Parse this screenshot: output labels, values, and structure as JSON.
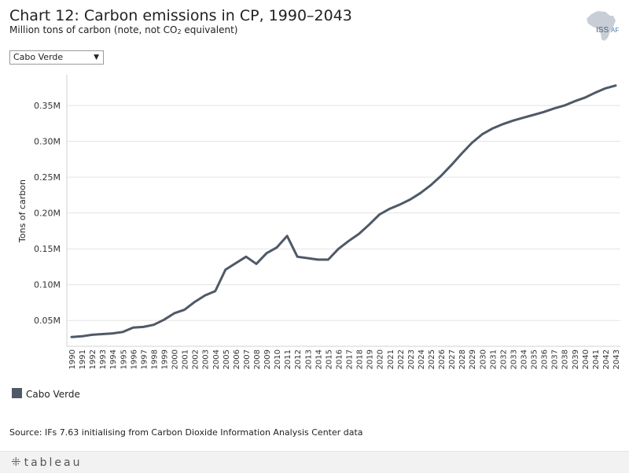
{
  "header": {
    "title": "Chart 12: Carbon emissions in CP, 1990–2043",
    "subtitle_pre": "Million tons of carbon (note, not CO",
    "subtitle_sub": "2",
    "subtitle_post": " equivalent)"
  },
  "logo": {
    "text_iss": "ISS",
    "text_af": "AF",
    "icon": "africa-map-icon"
  },
  "filter": {
    "selected": "Cabo Verde",
    "arrow_icon": "caret-down-icon"
  },
  "legend": {
    "label": "Cabo Verde",
    "color": "#4f5966"
  },
  "source": "Source: IFs 7.63 initialising from Carbon Dioxide Information Analysis Center data",
  "footer": {
    "brand": "tableau",
    "icon": "tableau-logo-icon"
  },
  "chart_data": {
    "type": "line",
    "title": "Chart 12: Carbon emissions in CP, 1990–2043",
    "xlabel": "",
    "ylabel": "Tons of carbon",
    "ylim": [
      0.014,
      0.393
    ],
    "yticks": [
      0.05,
      0.1,
      0.15,
      0.2,
      0.25,
      0.3,
      0.35
    ],
    "ytick_labels": [
      "0.05M",
      "0.10M",
      "0.15M",
      "0.20M",
      "0.25M",
      "0.30M",
      "0.35M"
    ],
    "grid": true,
    "legend_position": "bottom-left",
    "x": [
      1990,
      1991,
      1992,
      1993,
      1994,
      1995,
      1996,
      1997,
      1998,
      1999,
      2000,
      2001,
      2002,
      2003,
      2004,
      2005,
      2006,
      2007,
      2008,
      2009,
      2010,
      2011,
      2012,
      2013,
      2014,
      2015,
      2016,
      2017,
      2018,
      2019,
      2020,
      2021,
      2022,
      2023,
      2024,
      2025,
      2026,
      2027,
      2028,
      2029,
      2030,
      2031,
      2032,
      2033,
      2034,
      2035,
      2036,
      2037,
      2038,
      2039,
      2040,
      2041,
      2042,
      2043
    ],
    "series": [
      {
        "name": "Cabo Verde",
        "color": "#4f5966",
        "values": [
          0.027,
          0.028,
          0.03,
          0.031,
          0.032,
          0.034,
          0.04,
          0.041,
          0.044,
          0.051,
          0.06,
          0.065,
          0.076,
          0.085,
          0.091,
          0.121,
          0.13,
          0.139,
          0.129,
          0.144,
          0.152,
          0.168,
          0.139,
          0.137,
          0.135,
          0.135,
          0.15,
          0.161,
          0.171,
          0.184,
          0.198,
          0.206,
          0.212,
          0.219,
          0.228,
          0.239,
          0.252,
          0.267,
          0.283,
          0.298,
          0.31,
          0.318,
          0.324,
          0.329,
          0.333,
          0.337,
          0.341,
          0.346,
          0.35,
          0.356,
          0.361,
          0.368,
          0.374,
          0.378
        ]
      }
    ]
  }
}
